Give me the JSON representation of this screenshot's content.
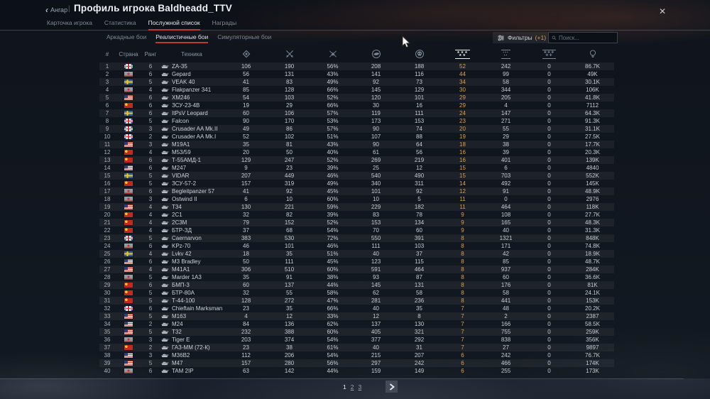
{
  "window": {
    "back_label": "Ангар",
    "separator": "|",
    "title": "Профиль игрока Baldheadd_TTV",
    "close_icon": "✕"
  },
  "tabs": [
    {
      "label": "Карточка игрока",
      "active": false
    },
    {
      "label": "Статистика",
      "active": false
    },
    {
      "label": "Послужной список",
      "active": true
    },
    {
      "label": "Награды",
      "active": false
    }
  ],
  "mode_tabs": [
    {
      "label": "Аркадные бои",
      "active": false
    },
    {
      "label": "Реалистичные бои",
      "active": true
    },
    {
      "label": "Симуляторные бои",
      "active": false
    }
  ],
  "toolbar": {
    "filters_label": "Фильтры",
    "filters_count": "(+1)",
    "search_placeholder": "Поиск..."
  },
  "table": {
    "text_headers": {
      "num": "#",
      "country": "Страна",
      "rank": "Ранг",
      "vehicle": "Техника"
    },
    "stat_columns": [
      {
        "icon": "battles-icon",
        "sorted": false
      },
      {
        "icon": "frags-icon",
        "sorted": false
      },
      {
        "icon": "winrate-icon",
        "sorted": false
      },
      {
        "icon": "air-targets-icon",
        "sorted": false
      },
      {
        "icon": "deaths-icon",
        "sorted": false
      },
      {
        "icon": "respawns-icon",
        "sorted": true
      },
      {
        "icon": "assists-icon",
        "sorted": false
      },
      {
        "icon": "captures-icon",
        "sorted": false
      },
      {
        "icon": "score-icon",
        "sorted": false
      }
    ],
    "rows": [
      {
        "num": 1,
        "country": "britain",
        "rank": 6,
        "vehicle": "ZA-35",
        "stats": [
          "106",
          "190",
          "56%",
          "208",
          "188",
          "52",
          "242",
          "0",
          "86.7K"
        ]
      },
      {
        "num": 2,
        "country": "germany",
        "rank": 6,
        "vehicle": "Gepard",
        "stats": [
          "56",
          "131",
          "43%",
          "141",
          "116",
          "44",
          "99",
          "0",
          "49K"
        ]
      },
      {
        "num": 3,
        "country": "sweden",
        "rank": 5,
        "vehicle": "VEAK 40",
        "stats": [
          "41",
          "83",
          "49%",
          "92",
          "73",
          "34",
          "58",
          "0",
          "30.1K"
        ]
      },
      {
        "num": 4,
        "country": "germany",
        "rank": 4,
        "vehicle": "Flakpanzer 341",
        "stats": [
          "85",
          "128",
          "66%",
          "145",
          "129",
          "30",
          "344",
          "0",
          "106K"
        ]
      },
      {
        "num": 5,
        "country": "usa",
        "rank": 6,
        "vehicle": "XM246",
        "stats": [
          "54",
          "103",
          "52%",
          "120",
          "101",
          "29",
          "205",
          "0",
          "41.8K"
        ]
      },
      {
        "num": 6,
        "country": "ussr",
        "rank": 6,
        "vehicle": "ЗСУ-23-4В",
        "stats": [
          "19",
          "29",
          "66%",
          "30",
          "16",
          "29",
          "4",
          "0",
          "7112"
        ]
      },
      {
        "num": 7,
        "country": "sweden",
        "rank": 6,
        "vehicle": "ItPsV Leopard",
        "stats": [
          "60",
          "106",
          "57%",
          "119",
          "111",
          "24",
          "147",
          "0",
          "64.3K"
        ]
      },
      {
        "num": 8,
        "country": "britain",
        "rank": 5,
        "vehicle": "Falcon",
        "stats": [
          "90",
          "170",
          "53%",
          "173",
          "153",
          "23",
          "271",
          "0",
          "91.3K"
        ]
      },
      {
        "num": 9,
        "country": "britain",
        "rank": 3,
        "vehicle": "Crusader AA Mk.II",
        "stats": [
          "49",
          "86",
          "57%",
          "90",
          "74",
          "20",
          "55",
          "0",
          "31.1K"
        ]
      },
      {
        "num": 10,
        "country": "britain",
        "rank": 2,
        "vehicle": "Crusader AA Mk.I",
        "stats": [
          "52",
          "102",
          "51%",
          "107",
          "88",
          "19",
          "29",
          "0",
          "27.5K"
        ]
      },
      {
        "num": 11,
        "country": "usa",
        "rank": 3,
        "vehicle": "M19A1",
        "stats": [
          "35",
          "81",
          "43%",
          "90",
          "64",
          "18",
          "38",
          "0",
          "17.7K"
        ]
      },
      {
        "num": 12,
        "country": "ussr",
        "rank": 4,
        "vehicle": "М53/59",
        "stats": [
          "20",
          "50",
          "40%",
          "61",
          "56",
          "16",
          "39",
          "0",
          "20.3K"
        ]
      },
      {
        "num": 13,
        "country": "ussr",
        "rank": 6,
        "vehicle": "Т-55АМД-1",
        "stats": [
          "129",
          "247",
          "52%",
          "269",
          "219",
          "16",
          "401",
          "0",
          "139K"
        ]
      },
      {
        "num": 14,
        "country": "usa",
        "rank": 6,
        "vehicle": "M247",
        "stats": [
          "9",
          "23",
          "39%",
          "25",
          "12",
          "15",
          "6",
          "0",
          "4840"
        ]
      },
      {
        "num": 15,
        "country": "sweden",
        "rank": 5,
        "vehicle": "VIDAR",
        "stats": [
          "207",
          "449",
          "46%",
          "540",
          "490",
          "15",
          "703",
          "0",
          "552K"
        ]
      },
      {
        "num": 16,
        "country": "ussr",
        "rank": 5,
        "vehicle": "ЗСУ-57-2",
        "stats": [
          "157",
          "319",
          "49%",
          "340",
          "311",
          "14",
          "492",
          "0",
          "145K"
        ]
      },
      {
        "num": 17,
        "country": "germany",
        "rank": 6,
        "vehicle": "Begleitpanzer 57",
        "stats": [
          "41",
          "92",
          "45%",
          "101",
          "92",
          "12",
          "91",
          "0",
          "48.9K"
        ]
      },
      {
        "num": 18,
        "country": "germany",
        "rank": 3,
        "vehicle": "Ostwind II",
        "stats": [
          "6",
          "10",
          "60%",
          "10",
          "5",
          "11",
          "0",
          "0",
          "2976"
        ]
      },
      {
        "num": 19,
        "country": "usa",
        "rank": 4,
        "vehicle": "T34",
        "stats": [
          "130",
          "221",
          "59%",
          "229",
          "182",
          "11",
          "464",
          "0",
          "118K"
        ]
      },
      {
        "num": 20,
        "country": "ussr",
        "rank": 4,
        "vehicle": "2С1",
        "stats": [
          "32",
          "82",
          "39%",
          "83",
          "78",
          "9",
          "108",
          "0",
          "27.7K"
        ]
      },
      {
        "num": 21,
        "country": "ussr",
        "rank": 4,
        "vehicle": "2С3М",
        "stats": [
          "79",
          "152",
          "52%",
          "153",
          "134",
          "9",
          "165",
          "0",
          "48.3K"
        ]
      },
      {
        "num": 22,
        "country": "ussr",
        "rank": 4,
        "vehicle": "БТР-ЗД",
        "stats": [
          "37",
          "68",
          "54%",
          "70",
          "60",
          "9",
          "40",
          "0",
          "31.3K"
        ]
      },
      {
        "num": 23,
        "country": "britain",
        "rank": 5,
        "vehicle": "Caernarvon",
        "stats": [
          "383",
          "530",
          "72%",
          "550",
          "391",
          "8",
          "1321",
          "0",
          "848K"
        ]
      },
      {
        "num": 24,
        "country": "germany",
        "rank": 6,
        "vehicle": "KPz-70",
        "stats": [
          "46",
          "101",
          "46%",
          "111",
          "103",
          "8",
          "171",
          "0",
          "74.8K"
        ]
      },
      {
        "num": 25,
        "country": "sweden",
        "rank": 4,
        "vehicle": "Lvkv 42",
        "stats": [
          "18",
          "35",
          "51%",
          "40",
          "37",
          "8",
          "42",
          "0",
          "18.9K"
        ]
      },
      {
        "num": 26,
        "country": "usa",
        "rank": 6,
        "vehicle": "M3 Bradley",
        "stats": [
          "50",
          "111",
          "45%",
          "123",
          "115",
          "8",
          "85",
          "0",
          "48.7K"
        ]
      },
      {
        "num": 27,
        "country": "usa",
        "rank": 4,
        "vehicle": "M41A1",
        "stats": [
          "306",
          "510",
          "60%",
          "591",
          "464",
          "8",
          "937",
          "0",
          "284K"
        ]
      },
      {
        "num": 28,
        "country": "germany",
        "rank": 5,
        "vehicle": "Marder 1A3",
        "stats": [
          "35",
          "91",
          "38%",
          "93",
          "87",
          "8",
          "60",
          "0",
          "36.6K"
        ]
      },
      {
        "num": 29,
        "country": "ussr",
        "rank": 6,
        "vehicle": "БМП-3",
        "stats": [
          "60",
          "137",
          "44%",
          "145",
          "131",
          "8",
          "176",
          "0",
          "81K"
        ]
      },
      {
        "num": 30,
        "country": "ussr",
        "rank": 5,
        "vehicle": "БТР-80А",
        "stats": [
          "32",
          "55",
          "58%",
          "62",
          "58",
          "8",
          "58",
          "0",
          "24.1K"
        ]
      },
      {
        "num": 31,
        "country": "ussr",
        "rank": 5,
        "vehicle": "Т-44-100",
        "stats": [
          "128",
          "272",
          "47%",
          "281",
          "236",
          "8",
          "441",
          "0",
          "153K"
        ]
      },
      {
        "num": 32,
        "country": "britain",
        "rank": 6,
        "vehicle": "Chieftain Marksman",
        "stats": [
          "23",
          "35",
          "66%",
          "40",
          "35",
          "7",
          "48",
          "0",
          "20.2K"
        ]
      },
      {
        "num": 33,
        "country": "usa",
        "rank": 5,
        "vehicle": "M163",
        "stats": [
          "4",
          "12",
          "33%",
          "12",
          "8",
          "7",
          "2",
          "0",
          "2387"
        ]
      },
      {
        "num": 34,
        "country": "usa",
        "rank": 2,
        "vehicle": "M24",
        "stats": [
          "84",
          "136",
          "62%",
          "137",
          "130",
          "7",
          "166",
          "0",
          "58.5K"
        ]
      },
      {
        "num": 35,
        "country": "usa",
        "rank": 5,
        "vehicle": "T32",
        "stats": [
          "232",
          "388",
          "60%",
          "405",
          "321",
          "7",
          "755",
          "0",
          "259K"
        ]
      },
      {
        "num": 36,
        "country": "germany",
        "rank": 3,
        "vehicle": "Tiger E",
        "stats": [
          "203",
          "374",
          "54%",
          "377",
          "292",
          "7",
          "838",
          "0",
          "356K"
        ]
      },
      {
        "num": 37,
        "country": "ussr",
        "rank": 2,
        "vehicle": "ГАЗ-ММ (72-К)",
        "stats": [
          "23",
          "38",
          "61%",
          "40",
          "31",
          "7",
          "27",
          "0",
          "9897"
        ]
      },
      {
        "num": 38,
        "country": "usa",
        "rank": 3,
        "vehicle": "M36B2",
        "stats": [
          "112",
          "206",
          "54%",
          "215",
          "207",
          "6",
          "242",
          "0",
          "76.7K"
        ]
      },
      {
        "num": 39,
        "country": "usa",
        "rank": 5,
        "vehicle": "M47",
        "stats": [
          "157",
          "280",
          "56%",
          "297",
          "242",
          "6",
          "466",
          "0",
          "174K"
        ]
      },
      {
        "num": 40,
        "country": "germany",
        "rank": 6,
        "vehicle": "TAM 2IP",
        "stats": [
          "63",
          "142",
          "44%",
          "159",
          "149",
          "6",
          "255",
          "0",
          "173K"
        ]
      }
    ]
  },
  "pagination": {
    "pages": [
      {
        "label": "1",
        "current": true
      },
      {
        "label": "2",
        "current": false
      },
      {
        "label": "3",
        "current": false
      }
    ]
  },
  "colors": {
    "accent_red": "#bf3b2b",
    "accent_orange": "#dfa14c"
  }
}
